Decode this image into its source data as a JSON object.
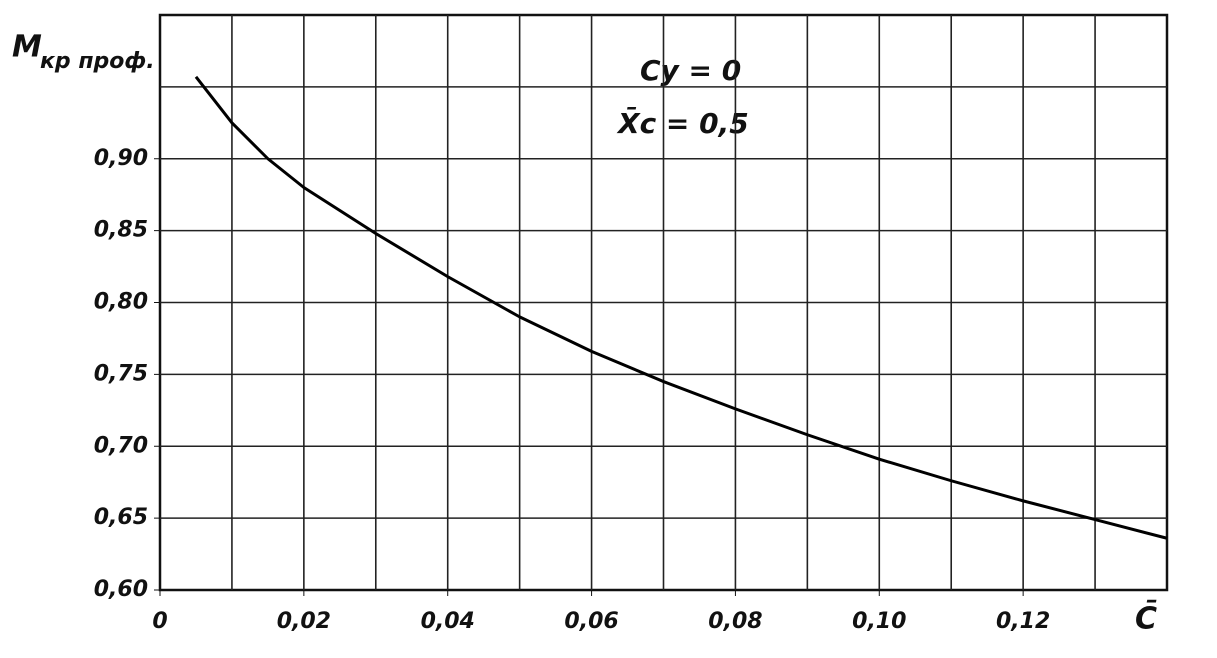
{
  "chart_data": {
    "type": "line",
    "ylabel": "M",
    "ylabel_sub": "кр проф.",
    "xlabel": "C̄",
    "annotations": [
      "Cy = 0",
      "X̄c = 0,5"
    ],
    "x": [
      0.005,
      0.01,
      0.015,
      0.02,
      0.03,
      0.04,
      0.05,
      0.06,
      0.07,
      0.08,
      0.09,
      0.1,
      0.11,
      0.12,
      0.13,
      0.14
    ],
    "values": [
      0.957,
      0.925,
      0.9,
      0.88,
      0.848,
      0.818,
      0.79,
      0.766,
      0.745,
      0.726,
      0.708,
      0.691,
      0.676,
      0.662,
      0.649,
      0.636
    ],
    "color": "#000000",
    "xlim": [
      0,
      0.14
    ],
    "ylim": [
      0.6,
      1.0
    ],
    "xticks": [
      {
        "value": 0,
        "label": "0"
      },
      {
        "value": 0.02,
        "label": "0,02"
      },
      {
        "value": 0.04,
        "label": "0,04"
      },
      {
        "value": 0.06,
        "label": "0,06"
      },
      {
        "value": 0.08,
        "label": "0,08"
      },
      {
        "value": 0.1,
        "label": "0,10"
      },
      {
        "value": 0.12,
        "label": "0,12"
      }
    ],
    "yticks": [
      {
        "value": 0.6,
        "label": "0,60"
      },
      {
        "value": 0.65,
        "label": "0,65"
      },
      {
        "value": 0.7,
        "label": "0,70"
      },
      {
        "value": 0.75,
        "label": "0,75"
      },
      {
        "value": 0.8,
        "label": "0,80"
      },
      {
        "value": 0.85,
        "label": "0,85"
      },
      {
        "value": 0.9,
        "label": "0,90"
      }
    ],
    "grid_x": [
      0.01,
      0.02,
      0.03,
      0.04,
      0.05,
      0.06,
      0.07,
      0.08,
      0.09,
      0.1,
      0.11,
      0.12,
      0.13
    ],
    "grid_y": [
      0.65,
      0.7,
      0.75,
      0.8,
      0.85,
      0.9,
      0.95
    ],
    "grid": true
  }
}
